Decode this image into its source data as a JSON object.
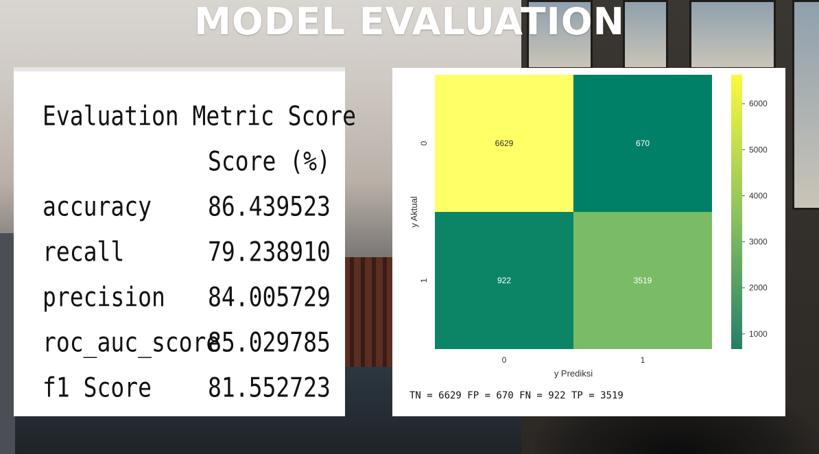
{
  "slide": {
    "title": "MODEL EVALUATION"
  },
  "metrics_table": {
    "heading": "Evaluation Metric Score",
    "column_header": "Score (%)",
    "rows": [
      {
        "metric": "accuracy",
        "score": "86.439523"
      },
      {
        "metric": "recall",
        "score": "79.238910"
      },
      {
        "metric": "precision",
        "score": "84.005729"
      },
      {
        "metric": "roc_auc_score",
        "score": "85.029785"
      },
      {
        "metric": "f1 Score",
        "score": "81.552723"
      }
    ]
  },
  "chart_data": {
    "type": "heatmap",
    "title": "",
    "xlabel": "y Prediksi",
    "ylabel": "y Aktual",
    "x_categories": [
      "0",
      "1"
    ],
    "y_categories": [
      "0",
      "1"
    ],
    "values": [
      [
        6629,
        670
      ],
      [
        922,
        3519
      ]
    ],
    "colormap": "summer",
    "colorbar": {
      "min": 670,
      "max": 6629,
      "ticks": [
        1000,
        2000,
        3000,
        4000,
        5000,
        6000
      ]
    },
    "colors": {
      "low": "#238067",
      "high": "#FAFA3C"
    }
  },
  "confusion_summary": "TN = 6629 FP = 670 FN = 922 TP = 3519"
}
